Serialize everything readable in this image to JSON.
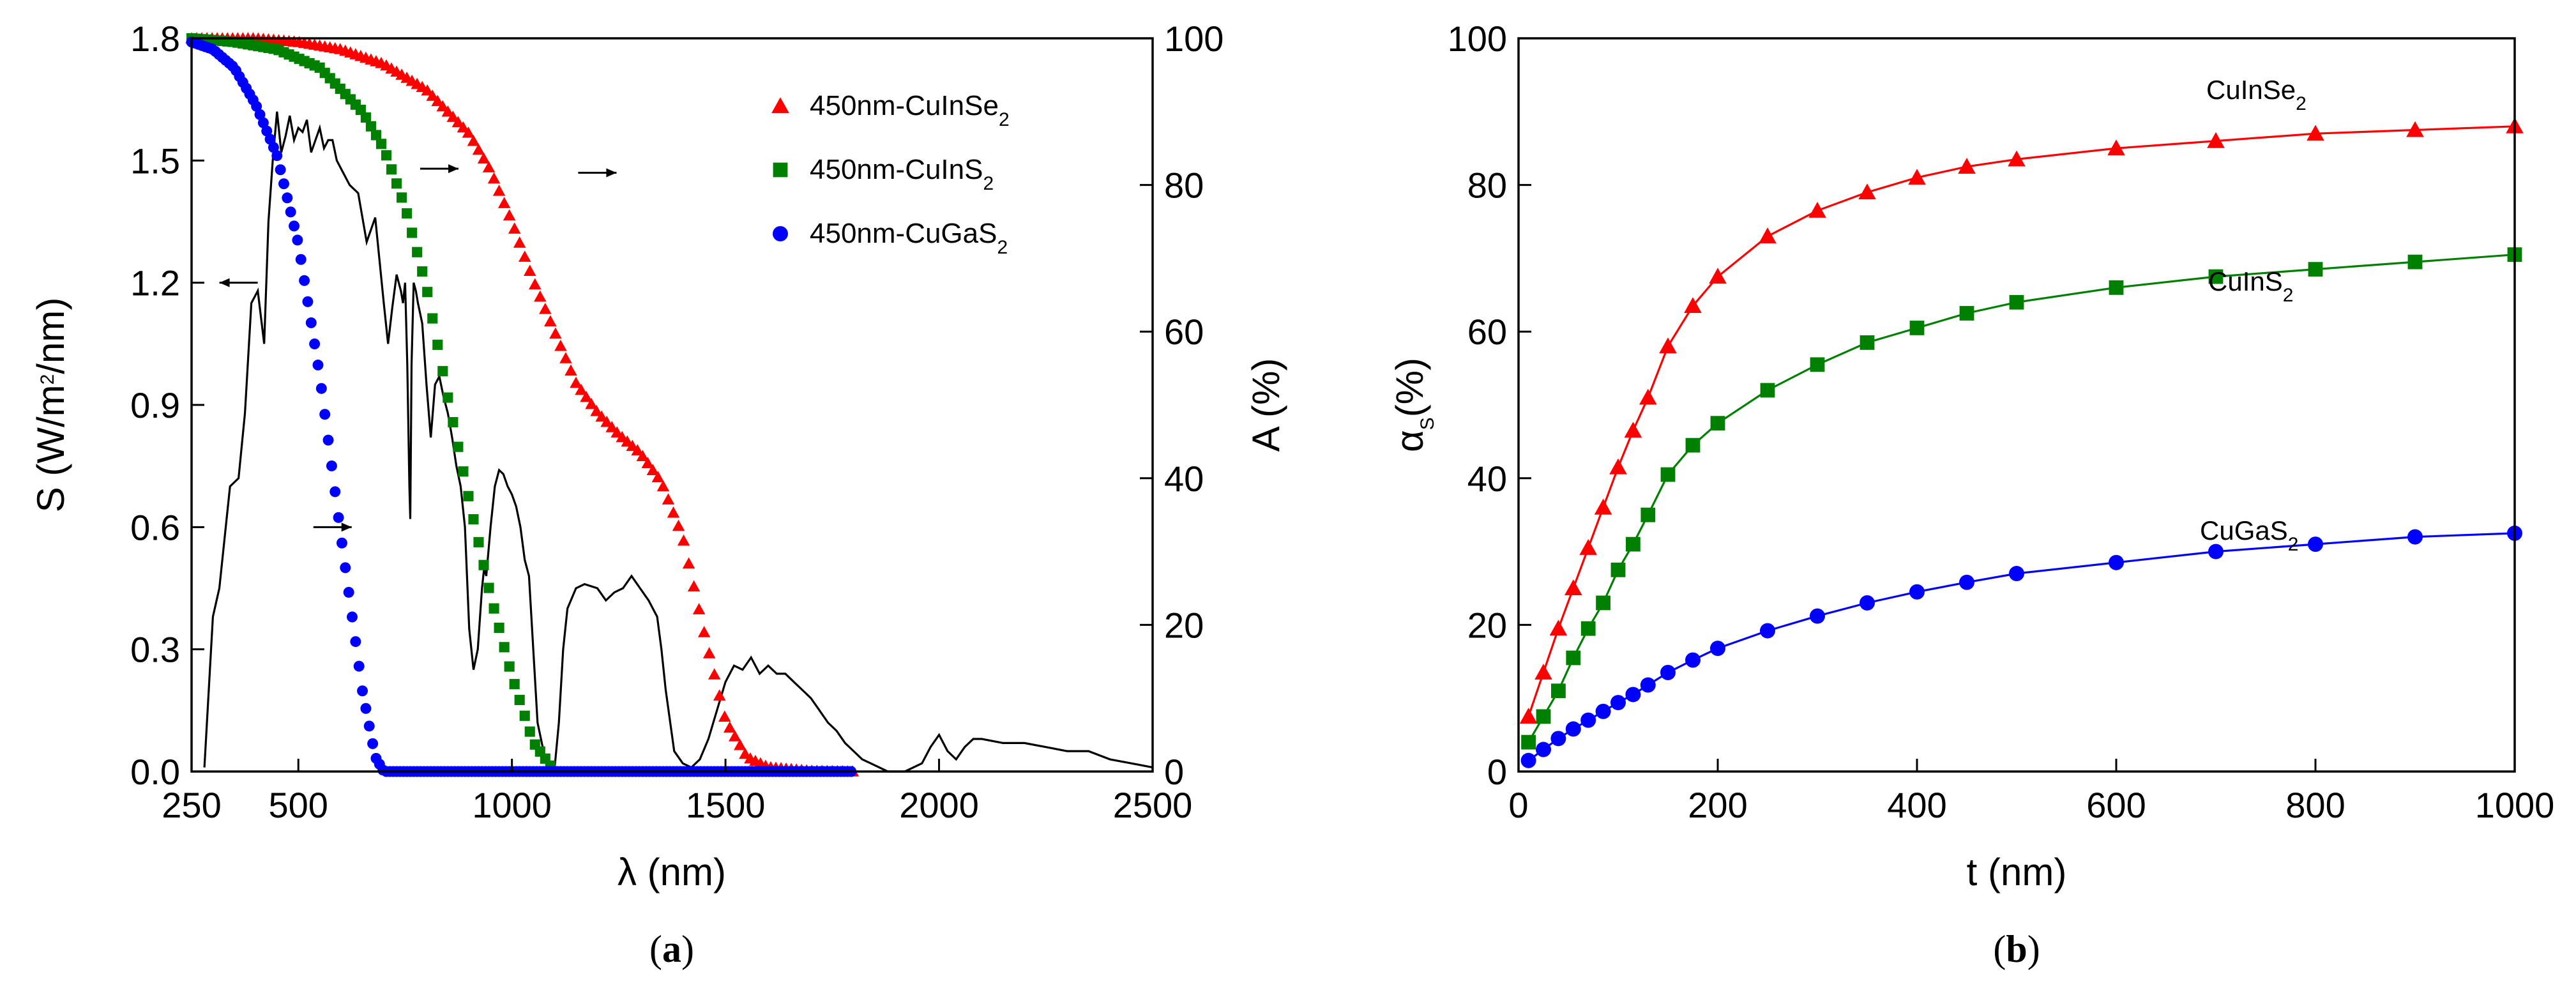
{
  "chart_data": [
    {
      "type": "scatter",
      "panel_label": "(a)",
      "x_axis": {
        "label": "λ (nm)",
        "range": [
          250,
          2500
        ],
        "ticks": [
          "250",
          "500",
          "1000",
          "1500",
          "2000",
          "2500"
        ]
      },
      "y_left": {
        "label_parts": [
          "S (W/m",
          "2",
          "/nm)"
        ],
        "range": [
          0,
          1.8
        ],
        "ticks": [
          "0.0",
          "0.3",
          "0.6",
          "0.9",
          "1.2",
          "1.5",
          "1.8"
        ]
      },
      "y_right": {
        "label": "A (%)",
        "range": [
          0,
          100
        ],
        "ticks": [
          "0",
          "20",
          "40",
          "60",
          "80",
          "100"
        ]
      },
      "legend_position": "top-right",
      "legend": [
        {
          "prefix": "450nm-CuInSe",
          "subscript": "2",
          "marker": "triangle",
          "color": "#ff0000"
        },
        {
          "prefix": "450nm-CuInS",
          "subscript": "2",
          "marker": "square",
          "color": "#008000"
        },
        {
          "prefix": "450nm-CuGaS",
          "subscript": "2",
          "marker": "circle",
          "color": "#0000ff"
        }
      ],
      "solar_spectrum": {
        "axis": "left",
        "color": "#000000",
        "x": [
          280,
          300,
          315,
          340,
          360,
          375,
          390,
          405,
          420,
          430,
          440,
          450,
          460,
          470,
          480,
          490,
          500,
          510,
          520,
          530,
          540,
          550,
          560,
          570,
          580,
          590,
          600,
          620,
          640,
          660,
          680,
          700,
          710,
          720,
          730,
          740,
          745,
          750,
          755,
          760,
          762,
          765,
          770,
          775,
          780,
          790,
          800,
          810,
          820,
          830,
          840,
          850,
          860,
          870,
          880,
          890,
          900,
          910,
          920,
          930,
          935,
          940,
          950,
          960,
          970,
          980,
          990,
          1000,
          1010,
          1020,
          1030,
          1040,
          1050,
          1060,
          1080,
          1100,
          1110,
          1120,
          1130,
          1150,
          1170,
          1200,
          1220,
          1240,
          1260,
          1280,
          1300,
          1320,
          1340,
          1350,
          1360,
          1380,
          1400,
          1420,
          1440,
          1460,
          1480,
          1500,
          1520,
          1540,
          1560,
          1580,
          1600,
          1620,
          1640,
          1660,
          1680,
          1700,
          1720,
          1740,
          1760,
          1780,
          1800,
          1820,
          1840,
          1860,
          1880,
          1900,
          1920,
          1940,
          1960,
          1980,
          2000,
          2020,
          2040,
          2060,
          2080,
          2100,
          2150,
          2200,
          2250,
          2300,
          2350,
          2400,
          2450,
          2500
        ],
        "y": [
          0.01,
          0.38,
          0.45,
          0.7,
          0.72,
          0.88,
          1.15,
          1.18,
          1.05,
          1.35,
          1.5,
          1.62,
          1.52,
          1.56,
          1.61,
          1.55,
          1.58,
          1.57,
          1.6,
          1.52,
          1.55,
          1.58,
          1.53,
          1.55,
          1.55,
          1.5,
          1.48,
          1.44,
          1.42,
          1.3,
          1.36,
          1.15,
          1.05,
          1.14,
          1.22,
          1.18,
          1.15,
          1.2,
          1.0,
          0.7,
          0.62,
          1.0,
          1.2,
          1.18,
          1.15,
          1.1,
          0.95,
          0.82,
          0.95,
          0.97,
          0.92,
          0.88,
          0.82,
          0.75,
          0.7,
          0.6,
          0.35,
          0.25,
          0.3,
          0.45,
          0.5,
          0.48,
          0.6,
          0.7,
          0.74,
          0.73,
          0.7,
          0.68,
          0.65,
          0.6,
          0.52,
          0.48,
          0.3,
          0.12,
          0.02,
          0.01,
          0.12,
          0.3,
          0.4,
          0.45,
          0.46,
          0.45,
          0.42,
          0.44,
          0.45,
          0.48,
          0.45,
          0.42,
          0.38,
          0.3,
          0.2,
          0.05,
          0.02,
          0.01,
          0.03,
          0.08,
          0.15,
          0.22,
          0.26,
          0.25,
          0.28,
          0.24,
          0.26,
          0.24,
          0.24,
          0.22,
          0.2,
          0.18,
          0.15,
          0.12,
          0.1,
          0.07,
          0.05,
          0.03,
          0.02,
          0.01,
          0.0,
          0.0,
          0.0,
          0.01,
          0.02,
          0.06,
          0.09,
          0.05,
          0.03,
          0.06,
          0.08,
          0.08,
          0.07,
          0.07,
          0.06,
          0.05,
          0.05,
          0.03,
          0.02,
          0.01
        ]
      },
      "series": [
        {
          "name": "450nm-CuInSe2",
          "axis": "right",
          "marker": "triangle",
          "color": "#ff0000",
          "x_range": [
            250,
            1800
          ],
          "step": 12,
          "x_knots": [
            250,
            400,
            500,
            600,
            700,
            800,
            900,
            950,
            1000,
            1050,
            1100,
            1150,
            1200,
            1225,
            1250,
            1300,
            1350,
            1400,
            1450,
            1500,
            1550,
            1600,
            1700,
            1800
          ],
          "y_knots": [
            100,
            100,
            99.5,
            98.5,
            96.5,
            93,
            87,
            82,
            75,
            67,
            60,
            53,
            49,
            47.5,
            46,
            43.5,
            39.5,
            32,
            19,
            7,
            2,
            0.6,
            0.1,
            0
          ]
        },
        {
          "name": "450nm-CuInS2",
          "axis": "right",
          "marker": "square",
          "color": "#008000",
          "x_range": [
            250,
            1100
          ],
          "step": 12,
          "x_knots": [
            250,
            350,
            450,
            550,
            650,
            700,
            750,
            800,
            850,
            900,
            950,
            1000,
            1050,
            1100
          ],
          "y_knots": [
            100,
            99.5,
            98.5,
            96,
            90,
            85,
            77,
            66,
            51,
            37,
            24,
            13,
            4,
            0
          ]
        },
        {
          "name": "450nm-CuGaS2",
          "axis": "right",
          "marker": "circle",
          "color": "#0000ff",
          "x_range": [
            250,
            1800
          ],
          "step": 8,
          "x_knots": [
            250,
            300,
            350,
            400,
            450,
            500,
            550,
            600,
            650,
            680,
            700,
            1800
          ],
          "y_knots": [
            99.5,
            98.5,
            96,
            91,
            84,
            72,
            54,
            32,
            11,
            2,
            0,
            0
          ]
        }
      ],
      "arrows": [
        {
          "x": 360,
          "y_left": 1.2,
          "direction": "left"
        },
        {
          "x": 580,
          "y_left": 0.6,
          "direction": "right"
        },
        {
          "x": 830,
          "y_left": 1.48,
          "direction": "right"
        },
        {
          "x": 1200,
          "y_left": 1.47,
          "direction": "right"
        }
      ]
    },
    {
      "type": "line",
      "panel_label": "(b)",
      "x_axis": {
        "label": "t (nm)",
        "range": [
          0,
          1000
        ],
        "ticks": [
          "0",
          "200",
          "400",
          "600",
          "800",
          "1000"
        ]
      },
      "y_axis": {
        "label": "α",
        "label_sub": "S",
        "label_suffix": "(%)",
        "range": [
          0,
          100
        ],
        "ticks": [
          "0",
          "20",
          "40",
          "60",
          "80",
          "100"
        ]
      },
      "series": [
        {
          "name": "CuInSe2",
          "label_prefix": "CuInSe",
          "label_sub": "2",
          "marker": "triangle",
          "color": "#ff0000",
          "x": [
            10,
            25,
            40,
            55,
            70,
            85,
            100,
            115,
            130,
            150,
            175,
            200,
            250,
            300,
            350,
            400,
            450,
            500,
            600,
            700,
            800,
            900,
            1000
          ],
          "y": [
            7.5,
            13.5,
            19.5,
            25,
            30.5,
            36,
            41.5,
            46.5,
            51,
            58,
            63.5,
            67.5,
            73,
            76.5,
            79,
            81,
            82.5,
            83.5,
            85,
            86,
            87,
            87.5,
            88
          ]
        },
        {
          "name": "CuInS2",
          "label_prefix": "CuInS",
          "label_sub": "2",
          "marker": "square",
          "color": "#008000",
          "x": [
            10,
            25,
            40,
            55,
            70,
            85,
            100,
            115,
            130,
            150,
            175,
            200,
            250,
            300,
            350,
            400,
            450,
            500,
            600,
            700,
            800,
            900,
            1000
          ],
          "y": [
            4,
            7.5,
            11,
            15.5,
            19.5,
            23,
            27.5,
            31,
            35,
            40.5,
            44.5,
            47.5,
            52,
            55.5,
            58.5,
            60.5,
            62.5,
            64,
            66,
            67.5,
            68.5,
            69.5,
            70.5
          ]
        },
        {
          "name": "CuGaS2",
          "label_prefix": "CuGaS",
          "label_sub": "2",
          "marker": "circle",
          "color": "#0000ff",
          "x": [
            10,
            25,
            40,
            55,
            70,
            85,
            100,
            115,
            130,
            150,
            175,
            200,
            250,
            300,
            350,
            400,
            450,
            500,
            600,
            700,
            800,
            900,
            1000
          ],
          "y": [
            1.5,
            3,
            4.5,
            5.8,
            7,
            8.2,
            9.4,
            10.5,
            11.8,
            13.5,
            15.2,
            16.8,
            19.2,
            21.2,
            23,
            24.5,
            25.8,
            27,
            28.5,
            30,
            31,
            32,
            32.5
          ]
        }
      ]
    }
  ]
}
